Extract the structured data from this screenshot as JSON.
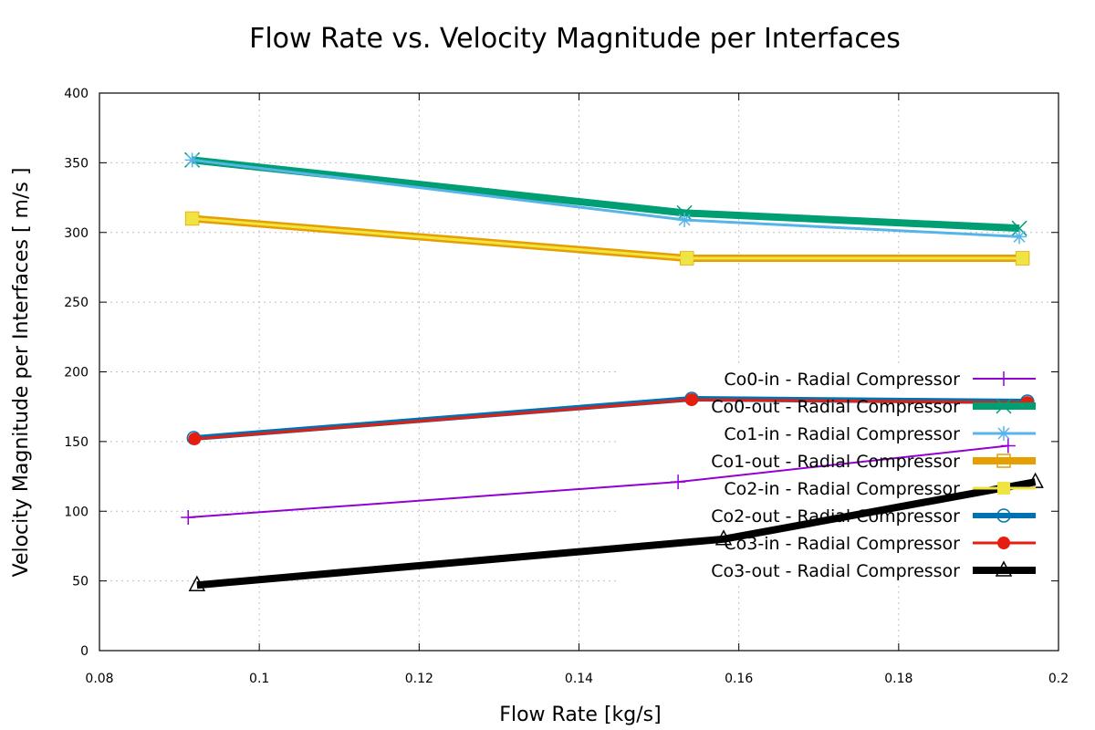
{
  "chart_data": {
    "type": "line",
    "title": "Flow Rate  vs. Velocity Magnitude per Interfaces",
    "xlabel": "Flow Rate [kg/s]",
    "ylabel": "Velocity Magnitude per Interfaces [ m/s ]",
    "xlim": [
      0.08,
      0.2
    ],
    "ylim": [
      0,
      400
    ],
    "xticks": [
      "0.08",
      "0.1",
      "0.12",
      "0.14",
      "0.16",
      "0.18",
      "0.2"
    ],
    "yticks": [
      "0",
      "50",
      "100",
      "150",
      "200",
      "250",
      "300",
      "350",
      "400"
    ],
    "grid": true,
    "legend_position": "right",
    "series": [
      {
        "name": "Co0-in - Radial Compressor",
        "color": "#9400d3",
        "marker": "plus",
        "x": [
          0.0911,
          0.1524,
          0.1937
        ],
        "y": [
          95.6,
          121,
          147
        ]
      },
      {
        "name": "Co0-out - Radial Compressor",
        "color": "#009e73",
        "marker": "cross",
        "x": [
          0.0916,
          0.1532,
          0.1951
        ],
        "y": [
          352,
          314,
          303
        ]
      },
      {
        "name": "Co1-in - Radial Compressor",
        "color": "#56b4e9",
        "marker": "star",
        "x": [
          0.0916,
          0.1532,
          0.1951
        ],
        "y": [
          352,
          309,
          297
        ]
      },
      {
        "name": "Co1-out - Radial Compressor",
        "color": "#e69f00",
        "marker": "open-square",
        "x": [
          0.0916,
          0.1535,
          0.1955
        ],
        "y": [
          310,
          281.5,
          281.5
        ]
      },
      {
        "name": "Co2-in - Radial Compressor",
        "color": "#f0e442",
        "marker": "filled-square",
        "x": [
          0.0916,
          0.1535,
          0.1955
        ],
        "y": [
          310,
          281.5,
          281.5
        ]
      },
      {
        "name": "Co2-out - Radial Compressor",
        "color": "#0072b2",
        "marker": "open-circle",
        "x": [
          0.0918,
          0.1541,
          0.1961
        ],
        "y": [
          152.5,
          180.7,
          178.7
        ]
      },
      {
        "name": "Co3-in - Radial Compressor",
        "color": "#e51e10",
        "marker": "filled-circle",
        "x": [
          0.0919,
          0.1541,
          0.1961
        ],
        "y": [
          151.9,
          180,
          178
        ]
      },
      {
        "name": "Co3-out - Radial Compressor",
        "color": "#000000",
        "marker": "open-triangle",
        "x": [
          0.0922,
          0.1581,
          0.1971
        ],
        "y": [
          47,
          80,
          121
        ]
      }
    ]
  }
}
